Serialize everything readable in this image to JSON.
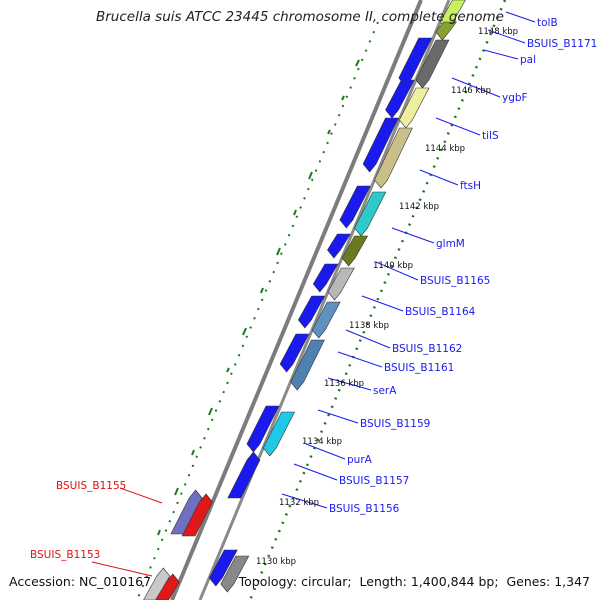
{
  "title": "Brucella suis ATCC 23445 chromosome II, complete genome",
  "accession": {
    "label": "Accession:",
    "value": "NC_010167"
  },
  "summary": {
    "topology_label": "Topology:",
    "topology": "circular",
    "length_label": "Length:",
    "length": "1,400,844 bp",
    "genes_label": "Genes:",
    "genes": "1,347"
  },
  "colors": {
    "forward_gene": "#1a1aee",
    "label_blue": "#1a1aee",
    "label_red": "#dd1111",
    "tick_green": "#1a7a1a",
    "backbone": "#808080"
  },
  "ticks": [
    "1148 kbp",
    "1146 kbp",
    "1144 kbp",
    "1142 kbp",
    "1140 kbp",
    "1138 kbp",
    "1136 kbp",
    "1134 kbp",
    "1132 kbp",
    "1130 kbp"
  ],
  "gene_labels_right": [
    "tolB",
    "BSUIS_B1171",
    "pal",
    "ygbF",
    "tilS",
    "ftsH",
    "glmM",
    "BSUIS_B1165",
    "BSUIS_B1164",
    "BSUIS_B1162",
    "BSUIS_B1161",
    "serA",
    "BSUIS_B1159",
    "purA",
    "BSUIS_B1157",
    "BSUIS_B1156"
  ],
  "gene_labels_left": [
    "BSUIS_B1155",
    "BSUIS_B1153"
  ]
}
